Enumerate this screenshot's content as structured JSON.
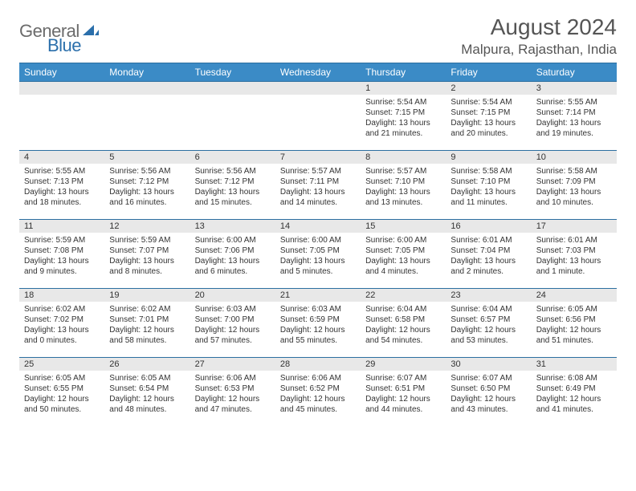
{
  "logo": {
    "textA": "General",
    "textB": "Blue"
  },
  "header": {
    "title": "August 2024",
    "location": "Malpura, Rajasthan, India"
  },
  "colors": {
    "header_bg": "#3b8bc6",
    "header_border": "#2c6fa0",
    "daynum_bg": "#e8e8e8",
    "text": "#333333"
  },
  "day_names": [
    "Sunday",
    "Monday",
    "Tuesday",
    "Wednesday",
    "Thursday",
    "Friday",
    "Saturday"
  ],
  "weeks": [
    [
      {
        "n": "",
        "l1": "",
        "l2": "",
        "l3": "",
        "l4": ""
      },
      {
        "n": "",
        "l1": "",
        "l2": "",
        "l3": "",
        "l4": ""
      },
      {
        "n": "",
        "l1": "",
        "l2": "",
        "l3": "",
        "l4": ""
      },
      {
        "n": "",
        "l1": "",
        "l2": "",
        "l3": "",
        "l4": ""
      },
      {
        "n": "1",
        "l1": "Sunrise: 5:54 AM",
        "l2": "Sunset: 7:15 PM",
        "l3": "Daylight: 13 hours",
        "l4": "and 21 minutes."
      },
      {
        "n": "2",
        "l1": "Sunrise: 5:54 AM",
        "l2": "Sunset: 7:15 PM",
        "l3": "Daylight: 13 hours",
        "l4": "and 20 minutes."
      },
      {
        "n": "3",
        "l1": "Sunrise: 5:55 AM",
        "l2": "Sunset: 7:14 PM",
        "l3": "Daylight: 13 hours",
        "l4": "and 19 minutes."
      }
    ],
    [
      {
        "n": "4",
        "l1": "Sunrise: 5:55 AM",
        "l2": "Sunset: 7:13 PM",
        "l3": "Daylight: 13 hours",
        "l4": "and 18 minutes."
      },
      {
        "n": "5",
        "l1": "Sunrise: 5:56 AM",
        "l2": "Sunset: 7:12 PM",
        "l3": "Daylight: 13 hours",
        "l4": "and 16 minutes."
      },
      {
        "n": "6",
        "l1": "Sunrise: 5:56 AM",
        "l2": "Sunset: 7:12 PM",
        "l3": "Daylight: 13 hours",
        "l4": "and 15 minutes."
      },
      {
        "n": "7",
        "l1": "Sunrise: 5:57 AM",
        "l2": "Sunset: 7:11 PM",
        "l3": "Daylight: 13 hours",
        "l4": "and 14 minutes."
      },
      {
        "n": "8",
        "l1": "Sunrise: 5:57 AM",
        "l2": "Sunset: 7:10 PM",
        "l3": "Daylight: 13 hours",
        "l4": "and 13 minutes."
      },
      {
        "n": "9",
        "l1": "Sunrise: 5:58 AM",
        "l2": "Sunset: 7:10 PM",
        "l3": "Daylight: 13 hours",
        "l4": "and 11 minutes."
      },
      {
        "n": "10",
        "l1": "Sunrise: 5:58 AM",
        "l2": "Sunset: 7:09 PM",
        "l3": "Daylight: 13 hours",
        "l4": "and 10 minutes."
      }
    ],
    [
      {
        "n": "11",
        "l1": "Sunrise: 5:59 AM",
        "l2": "Sunset: 7:08 PM",
        "l3": "Daylight: 13 hours",
        "l4": "and 9 minutes."
      },
      {
        "n": "12",
        "l1": "Sunrise: 5:59 AM",
        "l2": "Sunset: 7:07 PM",
        "l3": "Daylight: 13 hours",
        "l4": "and 8 minutes."
      },
      {
        "n": "13",
        "l1": "Sunrise: 6:00 AM",
        "l2": "Sunset: 7:06 PM",
        "l3": "Daylight: 13 hours",
        "l4": "and 6 minutes."
      },
      {
        "n": "14",
        "l1": "Sunrise: 6:00 AM",
        "l2": "Sunset: 7:05 PM",
        "l3": "Daylight: 13 hours",
        "l4": "and 5 minutes."
      },
      {
        "n": "15",
        "l1": "Sunrise: 6:00 AM",
        "l2": "Sunset: 7:05 PM",
        "l3": "Daylight: 13 hours",
        "l4": "and 4 minutes."
      },
      {
        "n": "16",
        "l1": "Sunrise: 6:01 AM",
        "l2": "Sunset: 7:04 PM",
        "l3": "Daylight: 13 hours",
        "l4": "and 2 minutes."
      },
      {
        "n": "17",
        "l1": "Sunrise: 6:01 AM",
        "l2": "Sunset: 7:03 PM",
        "l3": "Daylight: 13 hours",
        "l4": "and 1 minute."
      }
    ],
    [
      {
        "n": "18",
        "l1": "Sunrise: 6:02 AM",
        "l2": "Sunset: 7:02 PM",
        "l3": "Daylight: 13 hours",
        "l4": "and 0 minutes."
      },
      {
        "n": "19",
        "l1": "Sunrise: 6:02 AM",
        "l2": "Sunset: 7:01 PM",
        "l3": "Daylight: 12 hours",
        "l4": "and 58 minutes."
      },
      {
        "n": "20",
        "l1": "Sunrise: 6:03 AM",
        "l2": "Sunset: 7:00 PM",
        "l3": "Daylight: 12 hours",
        "l4": "and 57 minutes."
      },
      {
        "n": "21",
        "l1": "Sunrise: 6:03 AM",
        "l2": "Sunset: 6:59 PM",
        "l3": "Daylight: 12 hours",
        "l4": "and 55 minutes."
      },
      {
        "n": "22",
        "l1": "Sunrise: 6:04 AM",
        "l2": "Sunset: 6:58 PM",
        "l3": "Daylight: 12 hours",
        "l4": "and 54 minutes."
      },
      {
        "n": "23",
        "l1": "Sunrise: 6:04 AM",
        "l2": "Sunset: 6:57 PM",
        "l3": "Daylight: 12 hours",
        "l4": "and 53 minutes."
      },
      {
        "n": "24",
        "l1": "Sunrise: 6:05 AM",
        "l2": "Sunset: 6:56 PM",
        "l3": "Daylight: 12 hours",
        "l4": "and 51 minutes."
      }
    ],
    [
      {
        "n": "25",
        "l1": "Sunrise: 6:05 AM",
        "l2": "Sunset: 6:55 PM",
        "l3": "Daylight: 12 hours",
        "l4": "and 50 minutes."
      },
      {
        "n": "26",
        "l1": "Sunrise: 6:05 AM",
        "l2": "Sunset: 6:54 PM",
        "l3": "Daylight: 12 hours",
        "l4": "and 48 minutes."
      },
      {
        "n": "27",
        "l1": "Sunrise: 6:06 AM",
        "l2": "Sunset: 6:53 PM",
        "l3": "Daylight: 12 hours",
        "l4": "and 47 minutes."
      },
      {
        "n": "28",
        "l1": "Sunrise: 6:06 AM",
        "l2": "Sunset: 6:52 PM",
        "l3": "Daylight: 12 hours",
        "l4": "and 45 minutes."
      },
      {
        "n": "29",
        "l1": "Sunrise: 6:07 AM",
        "l2": "Sunset: 6:51 PM",
        "l3": "Daylight: 12 hours",
        "l4": "and 44 minutes."
      },
      {
        "n": "30",
        "l1": "Sunrise: 6:07 AM",
        "l2": "Sunset: 6:50 PM",
        "l3": "Daylight: 12 hours",
        "l4": "and 43 minutes."
      },
      {
        "n": "31",
        "l1": "Sunrise: 6:08 AM",
        "l2": "Sunset: 6:49 PM",
        "l3": "Daylight: 12 hours",
        "l4": "and 41 minutes."
      }
    ]
  ]
}
